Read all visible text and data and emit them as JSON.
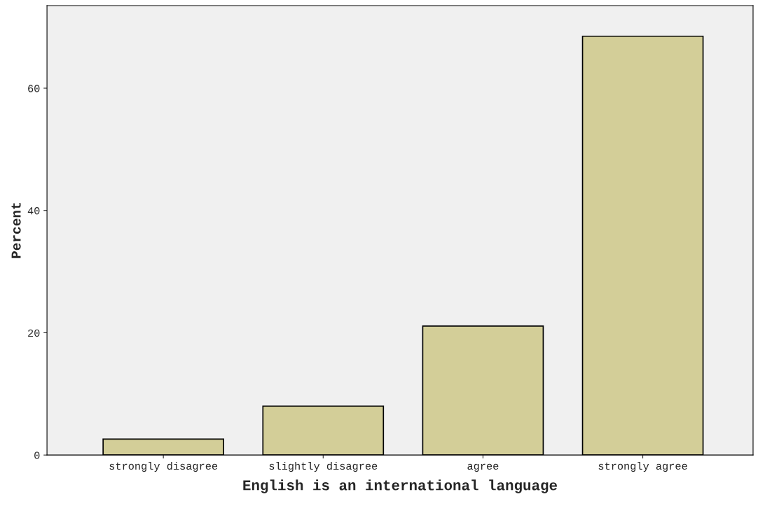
{
  "chart_data": {
    "type": "bar",
    "xlabel": "English is an international language",
    "ylabel": "Percent",
    "categories": [
      "strongly disagree",
      "slightly disagree",
      "agree",
      "strongly agree"
    ],
    "values": [
      2.6,
      8.0,
      21.1,
      68.5
    ],
    "color": "#d3ce98",
    "ylim": [
      0,
      73.5
    ],
    "yticks": [
      0,
      20,
      40,
      60
    ],
    "grid": false
  }
}
